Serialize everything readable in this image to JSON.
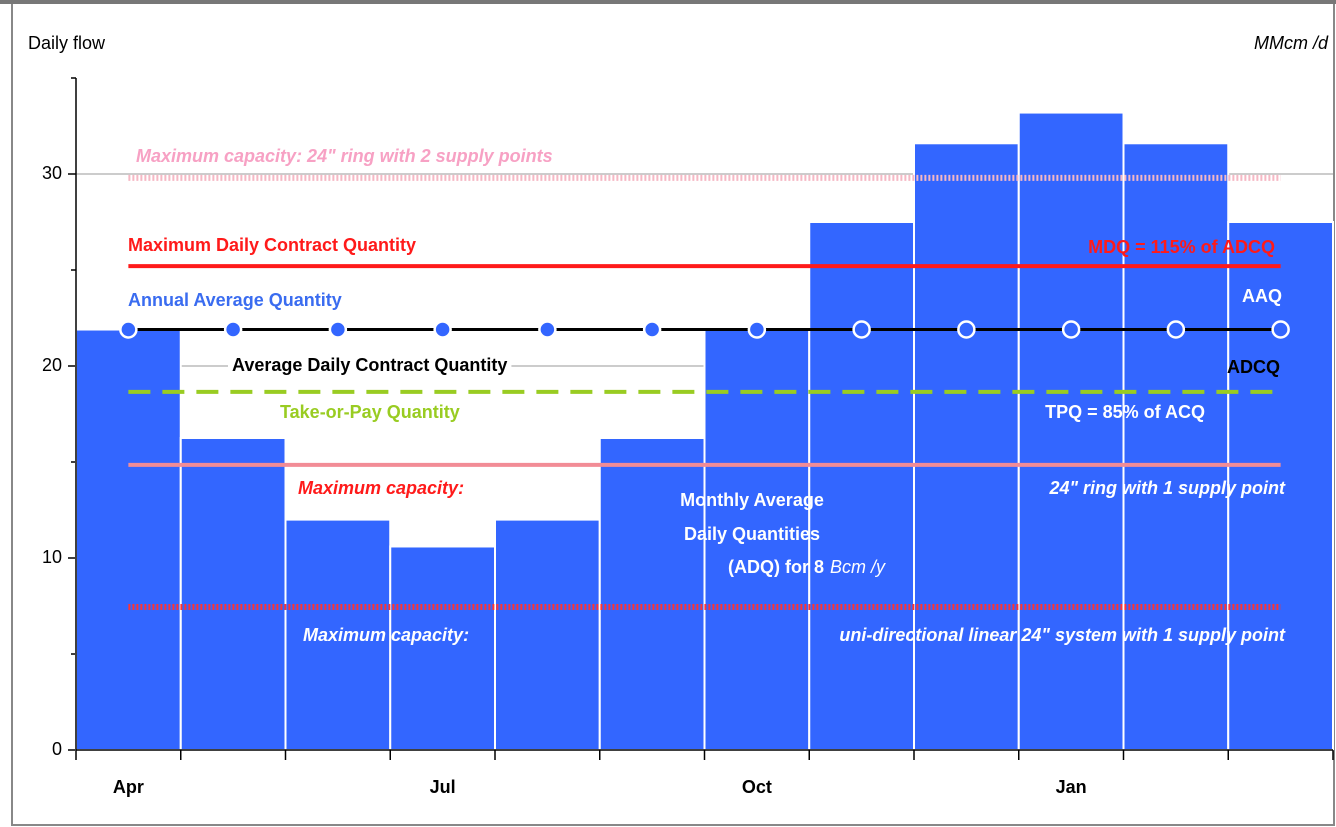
{
  "chart_data": {
    "type": "bar",
    "title": "Daily flow",
    "unit_label": "MMcm /d",
    "categories": [
      "Apr",
      null,
      null,
      "Jul",
      null,
      null,
      "Oct",
      null,
      null,
      "Jan",
      null,
      null
    ],
    "values": [
      21.9,
      16.25,
      12.0,
      10.6,
      12.0,
      16.25,
      21.9,
      27.5,
      31.6,
      33.2,
      31.6,
      27.5
    ],
    "color": "#3366ff",
    "ylim": [
      0,
      35
    ],
    "yticks": [
      0,
      10,
      20,
      30
    ],
    "yminor_ticks": [
      5,
      15,
      25,
      35
    ],
    "grid": true,
    "lines": [
      {
        "value": 29.8,
        "color": "#f5b8c4",
        "style": "dotted"
      },
      {
        "value": 25.2,
        "color": "#ff1a1a",
        "style": "solid"
      },
      {
        "value": 18.65,
        "color": "#99cc22",
        "style": "dashed"
      },
      {
        "value": 14.85,
        "color": "#f28c96",
        "style": "solid"
      },
      {
        "value": 7.45,
        "color": "#ff3333",
        "style": "dotted"
      }
    ],
    "aaq": {
      "values": [
        21.9,
        21.9,
        21.9,
        21.9,
        21.9,
        21.9,
        21.9,
        21.9,
        21.9,
        21.9,
        21.9,
        21.9
      ],
      "color": "#000000",
      "marker_colors": [
        "#3366ff",
        "#3366ff",
        "#3366ff",
        "#3366ff",
        "#3366ff",
        "#3366ff",
        "#3366ff",
        "#3366ff",
        "#3366ff",
        "#3366ff",
        "#3366ff",
        "#3366ff"
      ],
      "marker_strokes": [
        "#ffffff",
        "#ffffff",
        "#ffffff",
        "#ffffff",
        "#ffffff",
        "#ffffff",
        "#ffffff",
        "#ffffff",
        "#ffffff",
        "#ffffff",
        "#ffffff",
        "#ffffff"
      ]
    },
    "annotations": [
      "Maximum capacity: 24\" ring with 2 supply points",
      "Maximum Daily Contract Quantity",
      "MDQ = 115% of ADCQ",
      "Annual Average Quantity",
      "AAQ",
      "Average Daily Contract Quantity",
      "ADCQ",
      "Take-or-Pay Quantity",
      "TPQ = 85% of ACQ",
      "Maximum capacity:",
      "24\" ring with 1 supply point",
      "Monthly Average",
      "Daily Quantities",
      "(ADQ) for 8",
      "Bcm /y",
      "Maximum capacity:",
      "uni-directional linear 24\" system with 1 supply point"
    ]
  }
}
